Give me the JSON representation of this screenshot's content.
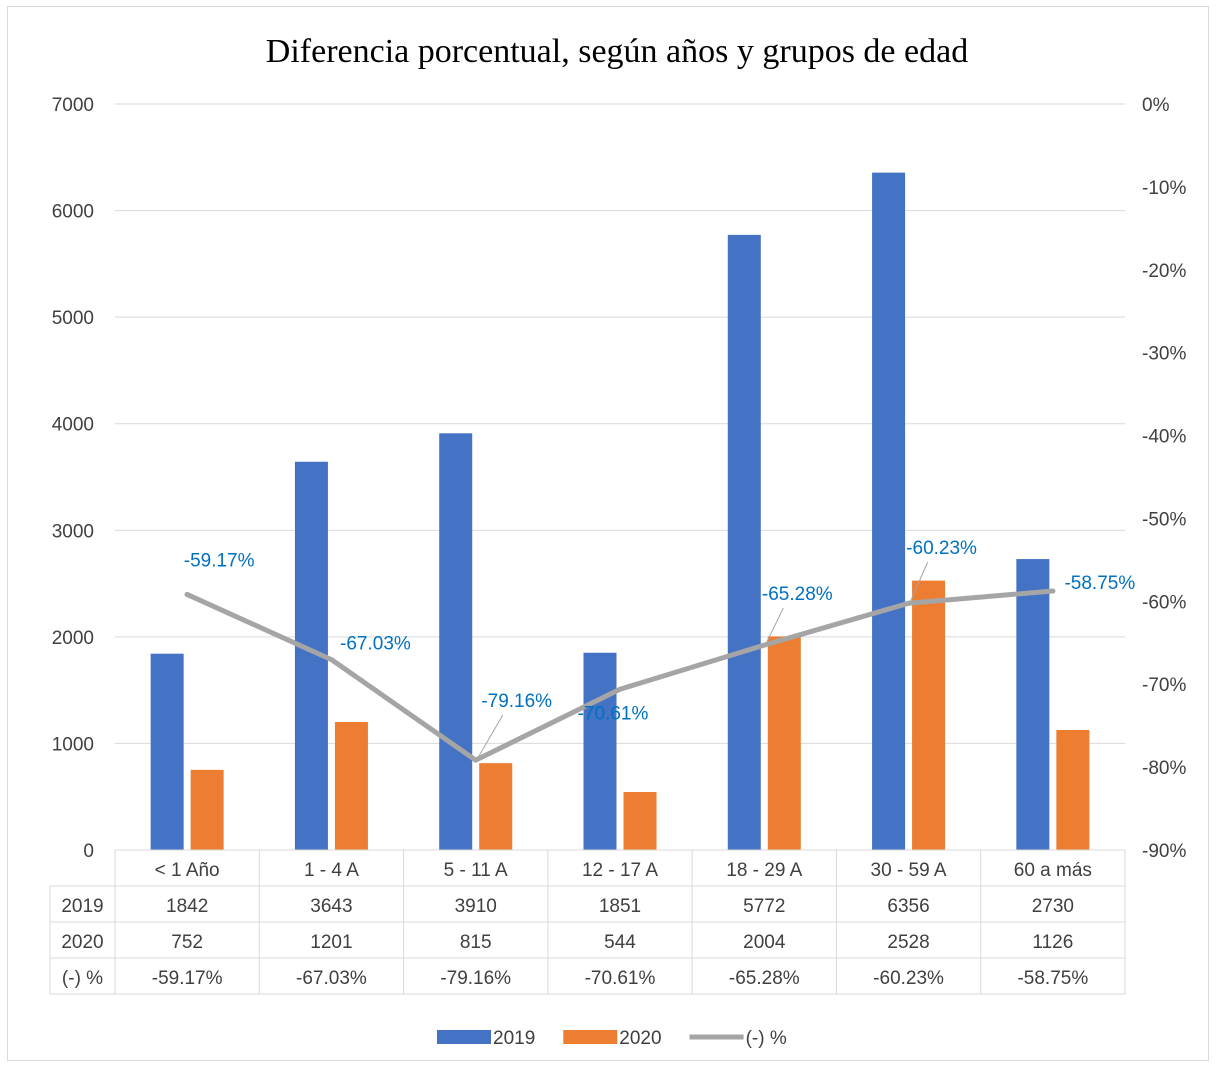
{
  "chart_data": {
    "type": "bar",
    "title": "Diferencia porcentual, según años y grupos de edad",
    "categories": [
      "< 1 Año",
      "1 - 4 A",
      "5 - 11 A",
      "12 - 17 A",
      "18 - 29 A",
      "30 - 59 A",
      "60 a más"
    ],
    "series": [
      {
        "name": "2019",
        "kind": "bar",
        "axis": "left",
        "color": "#4472c4",
        "values": [
          1842,
          3643,
          3910,
          1851,
          5772,
          6356,
          2730
        ],
        "labels": [
          "1842",
          "3643",
          "3910",
          "1851",
          "5772",
          "6356",
          "2730"
        ]
      },
      {
        "name": "2020",
        "kind": "bar",
        "axis": "left",
        "color": "#ed7d31",
        "values": [
          752,
          1201,
          815,
          544,
          2004,
          2528,
          1126
        ],
        "labels": [
          "752",
          "1201",
          "815",
          "544",
          "2004",
          "2528",
          "1126"
        ]
      },
      {
        "name": "(-) %",
        "kind": "line",
        "axis": "right",
        "color": "#a5a5a5",
        "values": [
          -59.17,
          -67.03,
          -79.16,
          -70.61,
          -65.28,
          -60.23,
          -58.75
        ],
        "labels": [
          "-59.17%",
          "-67.03%",
          "-79.16%",
          "-70.61%",
          "-65.28%",
          "-60.23%",
          "-58.75%"
        ]
      }
    ],
    "y_left": {
      "min": 0,
      "max": 7000,
      "ticks": [
        "0",
        "1000",
        "2000",
        "3000",
        "4000",
        "5000",
        "6000",
        "7000"
      ]
    },
    "y_right": {
      "min": -90,
      "max": 0,
      "ticks": [
        "-90%",
        "-80%",
        "-70%",
        "-60%",
        "-50%",
        "-40%",
        "-30%",
        "-20%",
        "-10%",
        "0%"
      ]
    },
    "grid": true,
    "legend": "bottom",
    "data_table": true,
    "data_label_color": "#0070c0"
  }
}
